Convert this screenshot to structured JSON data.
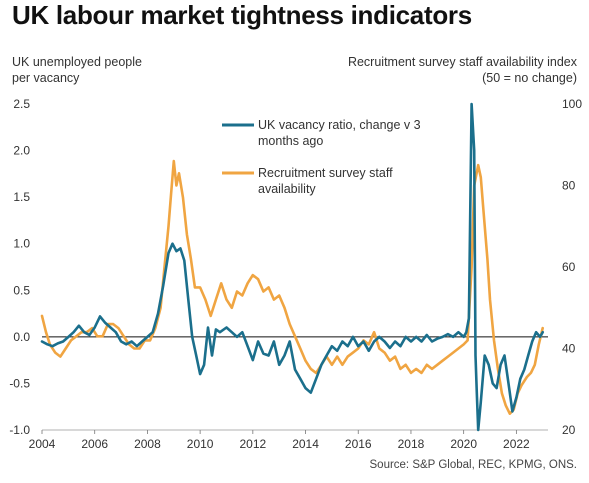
{
  "title": "UK labour market tightness indicators",
  "left_axis_label_1": "UK unemployed people",
  "left_axis_label_2": "per vacancy",
  "right_axis_label_1": "Recruitment survey staff availability index",
  "right_axis_label_2": "(50 = no change)",
  "source": "Source: S&P Global, REC, KPMG, ONS.",
  "colors": {
    "vacancy": "#1b6f8c",
    "recruit": "#f0a542",
    "zero_line": "#111111"
  },
  "chart_data": {
    "type": "line",
    "xlim": [
      2004.0,
      2023.2
    ],
    "x_ticks": [
      2004,
      2006,
      2008,
      2010,
      2012,
      2014,
      2016,
      2018,
      2020,
      2022
    ],
    "y_left": {
      "lim": [
        -1.0,
        2.5
      ],
      "ticks": [
        "-1.0",
        "-0.5",
        "0.0",
        "0.5",
        "1.0",
        "1.5",
        "2.0",
        "2.5"
      ]
    },
    "y_right": {
      "lim": [
        20,
        100
      ],
      "ticks": [
        "20",
        "40",
        "60",
        "80",
        "100"
      ]
    },
    "legend_position": "top-center",
    "series": [
      {
        "name": "UK vacancy ratio, change v 3 months ago",
        "axis": "left",
        "color": "#1b6f8c",
        "points": [
          [
            2004.0,
            -0.05
          ],
          [
            2004.2,
            -0.08
          ],
          [
            2004.4,
            -0.1
          ],
          [
            2004.6,
            -0.07
          ],
          [
            2004.8,
            -0.05
          ],
          [
            2005.0,
            0.0
          ],
          [
            2005.2,
            0.05
          ],
          [
            2005.4,
            0.12
          ],
          [
            2005.6,
            0.05
          ],
          [
            2005.8,
            0.02
          ],
          [
            2006.0,
            0.1
          ],
          [
            2006.2,
            0.22
          ],
          [
            2006.4,
            0.15
          ],
          [
            2006.6,
            0.1
          ],
          [
            2006.8,
            0.05
          ],
          [
            2007.0,
            -0.05
          ],
          [
            2007.2,
            -0.08
          ],
          [
            2007.4,
            -0.05
          ],
          [
            2007.6,
            -0.1
          ],
          [
            2007.8,
            -0.05
          ],
          [
            2008.0,
            0.0
          ],
          [
            2008.2,
            0.05
          ],
          [
            2008.4,
            0.25
          ],
          [
            2008.6,
            0.55
          ],
          [
            2008.8,
            0.9
          ],
          [
            2008.95,
            1.0
          ],
          [
            2009.1,
            0.92
          ],
          [
            2009.25,
            0.95
          ],
          [
            2009.4,
            0.82
          ],
          [
            2009.55,
            0.4
          ],
          [
            2009.7,
            0.0
          ],
          [
            2009.85,
            -0.2
          ],
          [
            2010.0,
            -0.4
          ],
          [
            2010.15,
            -0.3
          ],
          [
            2010.3,
            0.1
          ],
          [
            2010.45,
            -0.2
          ],
          [
            2010.6,
            0.08
          ],
          [
            2010.75,
            0.05
          ],
          [
            2011.0,
            0.1
          ],
          [
            2011.2,
            0.05
          ],
          [
            2011.4,
            0.0
          ],
          [
            2011.6,
            0.05
          ],
          [
            2011.8,
            -0.1
          ],
          [
            2012.0,
            -0.25
          ],
          [
            2012.2,
            -0.05
          ],
          [
            2012.4,
            -0.18
          ],
          [
            2012.6,
            -0.2
          ],
          [
            2012.8,
            -0.05
          ],
          [
            2013.0,
            -0.3
          ],
          [
            2013.2,
            -0.2
          ],
          [
            2013.4,
            -0.05
          ],
          [
            2013.6,
            -0.35
          ],
          [
            2013.8,
            -0.45
          ],
          [
            2014.0,
            -0.55
          ],
          [
            2014.2,
            -0.6
          ],
          [
            2014.4,
            -0.45
          ],
          [
            2014.6,
            -0.3
          ],
          [
            2014.8,
            -0.2
          ],
          [
            2015.0,
            -0.1
          ],
          [
            2015.2,
            -0.15
          ],
          [
            2015.4,
            -0.05
          ],
          [
            2015.6,
            -0.1
          ],
          [
            2015.8,
            0.0
          ],
          [
            2016.0,
            -0.1
          ],
          [
            2016.2,
            -0.05
          ],
          [
            2016.4,
            -0.15
          ],
          [
            2016.6,
            -0.05
          ],
          [
            2016.8,
            0.0
          ],
          [
            2017.0,
            -0.05
          ],
          [
            2017.2,
            -0.12
          ],
          [
            2017.4,
            -0.05
          ],
          [
            2017.6,
            -0.1
          ],
          [
            2017.8,
            0.0
          ],
          [
            2018.0,
            -0.05
          ],
          [
            2018.2,
            0.0
          ],
          [
            2018.4,
            -0.05
          ],
          [
            2018.6,
            0.02
          ],
          [
            2018.8,
            -0.05
          ],
          [
            2019.0,
            -0.02
          ],
          [
            2019.2,
            0.0
          ],
          [
            2019.4,
            0.03
          ],
          [
            2019.6,
            0.0
          ],
          [
            2019.8,
            0.05
          ],
          [
            2020.0,
            0.0
          ],
          [
            2020.1,
            0.05
          ],
          [
            2020.2,
            0.2
          ],
          [
            2020.3,
            2.5
          ],
          [
            2020.4,
            2.0
          ],
          [
            2020.45,
            -0.2
          ],
          [
            2020.5,
            -0.6
          ],
          [
            2020.55,
            -1.0
          ],
          [
            2020.65,
            -0.7
          ],
          [
            2020.8,
            -0.2
          ],
          [
            2020.95,
            -0.3
          ],
          [
            2021.1,
            -0.5
          ],
          [
            2021.25,
            -0.55
          ],
          [
            2021.4,
            -0.3
          ],
          [
            2021.55,
            -0.2
          ],
          [
            2021.7,
            -0.5
          ],
          [
            2021.85,
            -0.8
          ],
          [
            2022.0,
            -0.65
          ],
          [
            2022.15,
            -0.45
          ],
          [
            2022.3,
            -0.35
          ],
          [
            2022.45,
            -0.2
          ],
          [
            2022.6,
            -0.05
          ],
          [
            2022.75,
            0.05
          ],
          [
            2022.9,
            0.0
          ],
          [
            2023.0,
            0.05
          ]
        ]
      },
      {
        "name": "Recruitment survey staff availability",
        "axis": "right",
        "color": "#f0a542",
        "points": [
          [
            2004.0,
            48
          ],
          [
            2004.15,
            44
          ],
          [
            2004.3,
            41
          ],
          [
            2004.5,
            39
          ],
          [
            2004.7,
            38
          ],
          [
            2004.9,
            40
          ],
          [
            2005.1,
            42
          ],
          [
            2005.3,
            43
          ],
          [
            2005.5,
            44
          ],
          [
            2005.7,
            44
          ],
          [
            2005.9,
            45
          ],
          [
            2006.1,
            43
          ],
          [
            2006.3,
            43
          ],
          [
            2006.5,
            46
          ],
          [
            2006.7,
            46
          ],
          [
            2006.9,
            45
          ],
          [
            2007.1,
            43
          ],
          [
            2007.3,
            41
          ],
          [
            2007.5,
            40
          ],
          [
            2007.7,
            40
          ],
          [
            2007.9,
            42
          ],
          [
            2008.1,
            42
          ],
          [
            2008.3,
            45
          ],
          [
            2008.5,
            50
          ],
          [
            2008.65,
            60
          ],
          [
            2008.8,
            70
          ],
          [
            2008.9,
            78
          ],
          [
            2009.0,
            86
          ],
          [
            2009.1,
            80
          ],
          [
            2009.2,
            83
          ],
          [
            2009.35,
            77
          ],
          [
            2009.5,
            68
          ],
          [
            2009.65,
            62
          ],
          [
            2009.8,
            55
          ],
          [
            2010.0,
            55
          ],
          [
            2010.2,
            52
          ],
          [
            2010.4,
            48
          ],
          [
            2010.6,
            52
          ],
          [
            2010.8,
            56
          ],
          [
            2011.0,
            52
          ],
          [
            2011.2,
            50
          ],
          [
            2011.4,
            54
          ],
          [
            2011.6,
            53
          ],
          [
            2011.8,
            56
          ],
          [
            2012.0,
            58
          ],
          [
            2012.2,
            57
          ],
          [
            2012.4,
            54
          ],
          [
            2012.6,
            55
          ],
          [
            2012.8,
            52
          ],
          [
            2013.0,
            53
          ],
          [
            2013.2,
            50
          ],
          [
            2013.4,
            46
          ],
          [
            2013.6,
            43
          ],
          [
            2013.8,
            40
          ],
          [
            2014.0,
            37
          ],
          [
            2014.2,
            35
          ],
          [
            2014.4,
            34
          ],
          [
            2014.6,
            36
          ],
          [
            2014.8,
            38
          ],
          [
            2015.0,
            36
          ],
          [
            2015.2,
            38
          ],
          [
            2015.4,
            36
          ],
          [
            2015.6,
            38
          ],
          [
            2015.8,
            39
          ],
          [
            2016.0,
            40
          ],
          [
            2016.2,
            42
          ],
          [
            2016.4,
            41
          ],
          [
            2016.6,
            44
          ],
          [
            2016.8,
            40
          ],
          [
            2017.0,
            39
          ],
          [
            2017.2,
            37
          ],
          [
            2017.4,
            38
          ],
          [
            2017.6,
            35
          ],
          [
            2017.8,
            36
          ],
          [
            2018.0,
            34
          ],
          [
            2018.2,
            35
          ],
          [
            2018.4,
            34
          ],
          [
            2018.6,
            36
          ],
          [
            2018.8,
            35
          ],
          [
            2019.0,
            36
          ],
          [
            2019.2,
            37
          ],
          [
            2019.4,
            38
          ],
          [
            2019.6,
            39
          ],
          [
            2019.8,
            40
          ],
          [
            2020.0,
            41
          ],
          [
            2020.15,
            42
          ],
          [
            2020.3,
            60
          ],
          [
            2020.4,
            80
          ],
          [
            2020.55,
            85
          ],
          [
            2020.65,
            82
          ],
          [
            2020.75,
            74
          ],
          [
            2020.9,
            62
          ],
          [
            2021.0,
            52
          ],
          [
            2021.15,
            42
          ],
          [
            2021.3,
            35
          ],
          [
            2021.45,
            29
          ],
          [
            2021.6,
            26
          ],
          [
            2021.75,
            24
          ],
          [
            2021.9,
            25
          ],
          [
            2022.05,
            29
          ],
          [
            2022.2,
            31
          ],
          [
            2022.4,
            33
          ],
          [
            2022.55,
            34
          ],
          [
            2022.7,
            36
          ],
          [
            2022.85,
            41
          ],
          [
            2023.0,
            45
          ]
        ]
      }
    ]
  }
}
